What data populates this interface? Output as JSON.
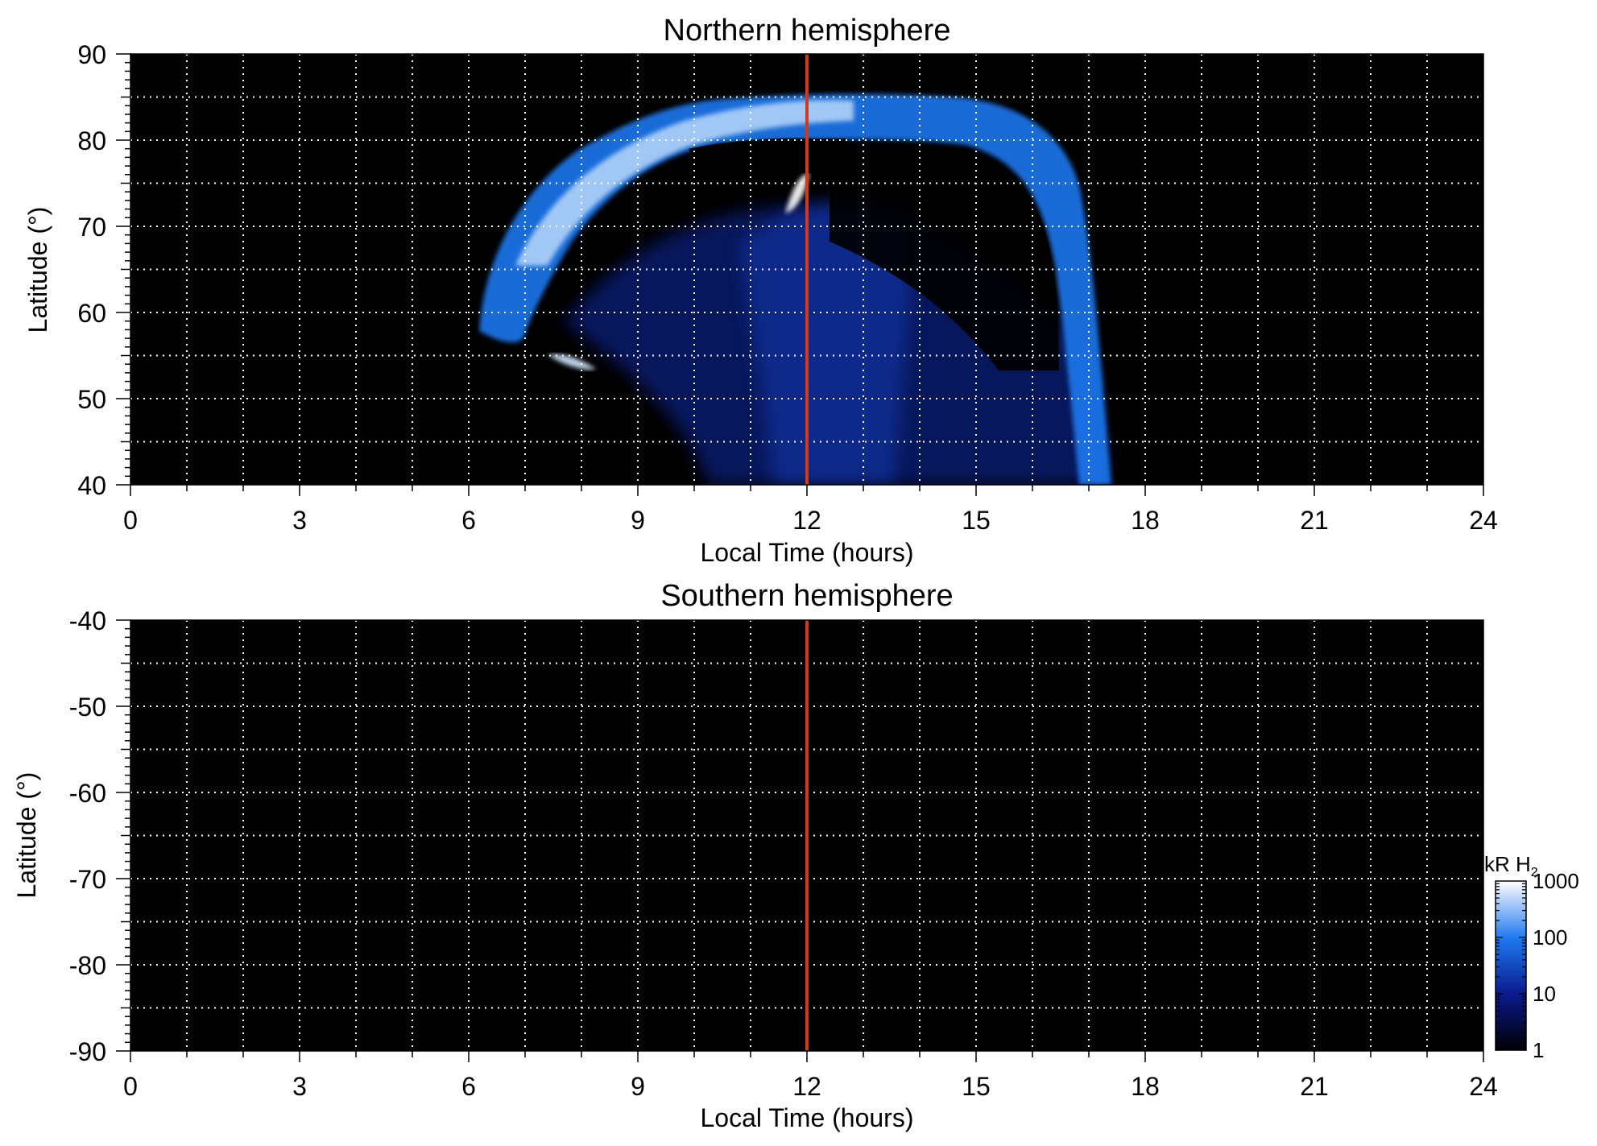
{
  "colors": {
    "background": "#000000",
    "grid": "#ffffff",
    "noon_line": "#d03a1a",
    "aurora_dim": "#0a2aa8",
    "aurora_mid": "#1e78f0",
    "aurora_bright": "#cfe6ff"
  },
  "chart_data": [
    {
      "type": "heatmap",
      "title": "Northern hemisphere",
      "xlabel": "Local Time (hours)",
      "ylabel": "Latitude (°)",
      "xlim": [
        0,
        24
      ],
      "ylim": [
        40,
        90
      ],
      "xticks": [
        0,
        3,
        6,
        9,
        12,
        15,
        18,
        21,
        24
      ],
      "xtick_labels": [
        "0",
        "3",
        "6",
        "9",
        "12",
        "15",
        "18",
        "21",
        "24"
      ],
      "yticks": [
        40,
        50,
        60,
        70,
        80,
        90
      ],
      "ytick_labels": [
        "40",
        "50",
        "60",
        "70",
        "80",
        "90"
      ],
      "grid": true,
      "vertical_line_x": 12,
      "main_oval": [
        {
          "lt": 6.1,
          "lat": 58
        },
        {
          "lt": 6.6,
          "lat": 66
        },
        {
          "lt": 7.3,
          "lat": 73
        },
        {
          "lt": 8.2,
          "lat": 79
        },
        {
          "lt": 9.2,
          "lat": 84
        },
        {
          "lt": 10.5,
          "lat": 86
        },
        {
          "lt": 12.0,
          "lat": 86
        },
        {
          "lt": 13.5,
          "lat": 86
        },
        {
          "lt": 14.6,
          "lat": 85
        },
        {
          "lt": 15.4,
          "lat": 82
        },
        {
          "lt": 16.0,
          "lat": 77
        },
        {
          "lt": 16.5,
          "lat": 70
        },
        {
          "lt": 16.8,
          "lat": 62
        },
        {
          "lt": 17.0,
          "lat": 52
        },
        {
          "lt": 17.2,
          "lat": 43
        },
        {
          "lt": 17.3,
          "lat": 40
        }
      ]
    },
    {
      "type": "heatmap",
      "title": "Southern hemisphere",
      "xlabel": "Local Time (hours)",
      "ylabel": "Latitude (°)",
      "xlim": [
        0,
        24
      ],
      "ylim": [
        -90,
        -40
      ],
      "xticks": [
        0,
        3,
        6,
        9,
        12,
        15,
        18,
        21,
        24
      ],
      "xtick_labels": [
        "0",
        "3",
        "6",
        "9",
        "12",
        "15",
        "18",
        "21",
        "24"
      ],
      "yticks": [
        -90,
        -80,
        -70,
        -60,
        -50,
        -40
      ],
      "ytick_labels": [
        "-90",
        "-80",
        "-70",
        "-60",
        "-50",
        "-40"
      ],
      "grid": true,
      "vertical_line_x": 12
    }
  ],
  "colorbar": {
    "label_main": "kR H",
    "label_sub": "2",
    "scale": "log",
    "range": [
      1,
      1000
    ],
    "ticks": [
      1,
      10,
      100,
      1000
    ],
    "tick_labels": [
      "1",
      "10",
      "100",
      "1000"
    ]
  }
}
